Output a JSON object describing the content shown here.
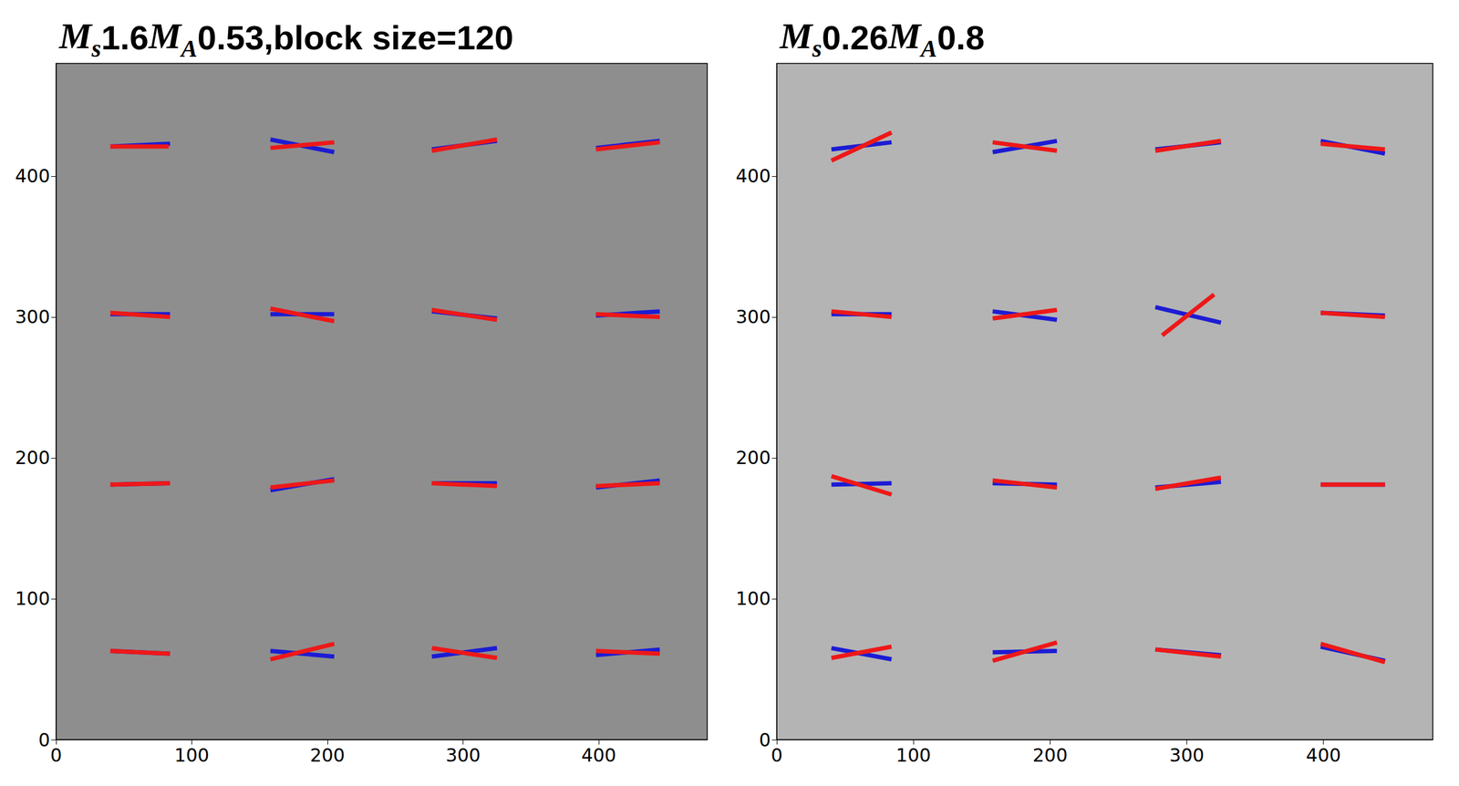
{
  "chart_data": [
    {
      "type": "line",
      "title": "Ms1.6MA0.53,block size=120",
      "xlim": [
        0,
        480
      ],
      "ylim": [
        0,
        480
      ],
      "xticks": [
        0,
        100,
        200,
        300,
        400
      ],
      "yticks": [
        0,
        100,
        200,
        300,
        400
      ],
      "series": [
        {
          "color": "#1c1cd4",
          "segments": [
            [
              40,
              421,
              84,
              423
            ],
            [
              158,
              426,
              205,
              417
            ],
            [
              277,
              419,
              325,
              425
            ],
            [
              398,
              420,
              445,
              425
            ],
            [
              40,
              302,
              84,
              302
            ],
            [
              158,
              302,
              205,
              302
            ],
            [
              277,
              304,
              325,
              299
            ],
            [
              398,
              301,
              445,
              304
            ],
            [
              40,
              181,
              84,
              182
            ],
            [
              158,
              177,
              205,
              185
            ],
            [
              277,
              182,
              325,
              182
            ],
            [
              398,
              179,
              445,
              184
            ],
            [
              40,
              63,
              84,
              61
            ],
            [
              158,
              63,
              205,
              59
            ],
            [
              277,
              59,
              325,
              65
            ],
            [
              398,
              60,
              445,
              64
            ]
          ]
        },
        {
          "color": "#ee1818",
          "segments": [
            [
              40,
              421,
              83,
              421
            ],
            [
              158,
              420,
              205,
              424
            ],
            [
              277,
              418,
              325,
              426
            ],
            [
              398,
              419,
              445,
              424
            ],
            [
              40,
              303,
              84,
              300
            ],
            [
              158,
              306,
              205,
              297
            ],
            [
              277,
              305,
              325,
              298
            ],
            [
              398,
              302,
              445,
              300
            ],
            [
              40,
              181,
              84,
              182
            ],
            [
              158,
              179,
              205,
              184
            ],
            [
              277,
              182,
              325,
              180
            ],
            [
              398,
              180,
              445,
              182
            ],
            [
              40,
              63,
              84,
              61
            ],
            [
              158,
              57,
              205,
              68
            ],
            [
              277,
              65,
              325,
              58
            ],
            [
              398,
              63,
              445,
              61
            ]
          ]
        }
      ]
    },
    {
      "type": "line",
      "title": "Ms0.26MA0.8",
      "xlim": [
        0,
        480
      ],
      "ylim": [
        0,
        480
      ],
      "xticks": [
        0,
        100,
        200,
        300,
        400
      ],
      "yticks": [
        0,
        100,
        200,
        300,
        400
      ],
      "series": [
        {
          "color": "#1c1cd4",
          "segments": [
            [
              40,
              419,
              84,
              424
            ],
            [
              158,
              417,
              205,
              425
            ],
            [
              277,
              419,
              325,
              424
            ],
            [
              398,
              425,
              445,
              416
            ],
            [
              40,
              302,
              84,
              302
            ],
            [
              158,
              304,
              205,
              298
            ],
            [
              277,
              307,
              325,
              296
            ],
            [
              398,
              303,
              445,
              301
            ],
            [
              40,
              181,
              84,
              182
            ],
            [
              158,
              182,
              205,
              181
            ],
            [
              277,
              179,
              325,
              183
            ],
            [
              398,
              181,
              445,
              181
            ],
            [
              40,
              65,
              84,
              57
            ],
            [
              158,
              62,
              205,
              63
            ],
            [
              277,
              64,
              325,
              60
            ],
            [
              398,
              66,
              445,
              56
            ]
          ]
        },
        {
          "color": "#ee1818",
          "segments": [
            [
              40,
              411,
              84,
              431
            ],
            [
              158,
              424,
              205,
              418
            ],
            [
              277,
              418,
              325,
              425
            ],
            [
              398,
              423,
              445,
              419
            ],
            [
              40,
              304,
              84,
              300
            ],
            [
              158,
              299,
              205,
              305
            ],
            [
              282,
              287,
              320,
              316
            ],
            [
              398,
              303,
              445,
              300
            ],
            [
              40,
              187,
              84,
              174
            ],
            [
              158,
              184,
              205,
              179
            ],
            [
              277,
              178,
              325,
              186
            ],
            [
              398,
              181,
              445,
              181
            ],
            [
              40,
              58,
              84,
              66
            ],
            [
              158,
              56,
              205,
              69
            ],
            [
              277,
              64,
              325,
              59
            ],
            [
              398,
              68,
              445,
              55
            ]
          ]
        }
      ]
    }
  ]
}
